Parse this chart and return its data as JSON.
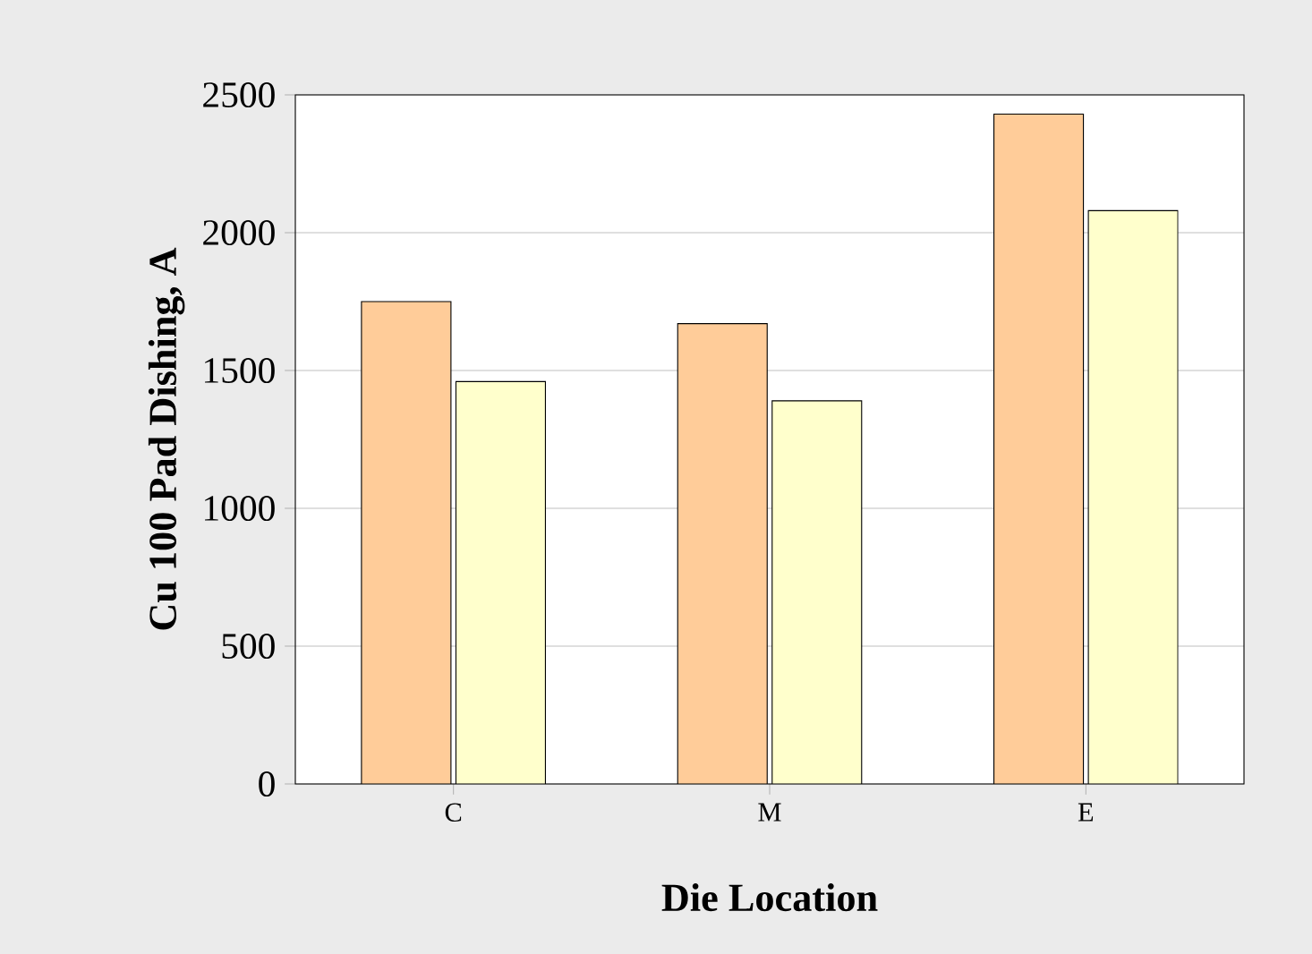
{
  "chart_data": {
    "type": "bar",
    "xlabel": "Die Location",
    "ylabel": "Cu 100 Pad Dishing, A",
    "categories": [
      "C",
      "M",
      "E"
    ],
    "series": [
      {
        "color": "#ffcc99",
        "values": [
          1750,
          1670,
          2430
        ]
      },
      {
        "color": "#ffffcc",
        "values": [
          1460,
          1390,
          2080
        ]
      }
    ],
    "ylim": [
      0,
      2500
    ],
    "yticks": [
      0,
      500,
      1000,
      1500,
      2000,
      2500
    ],
    "grid": "y"
  }
}
